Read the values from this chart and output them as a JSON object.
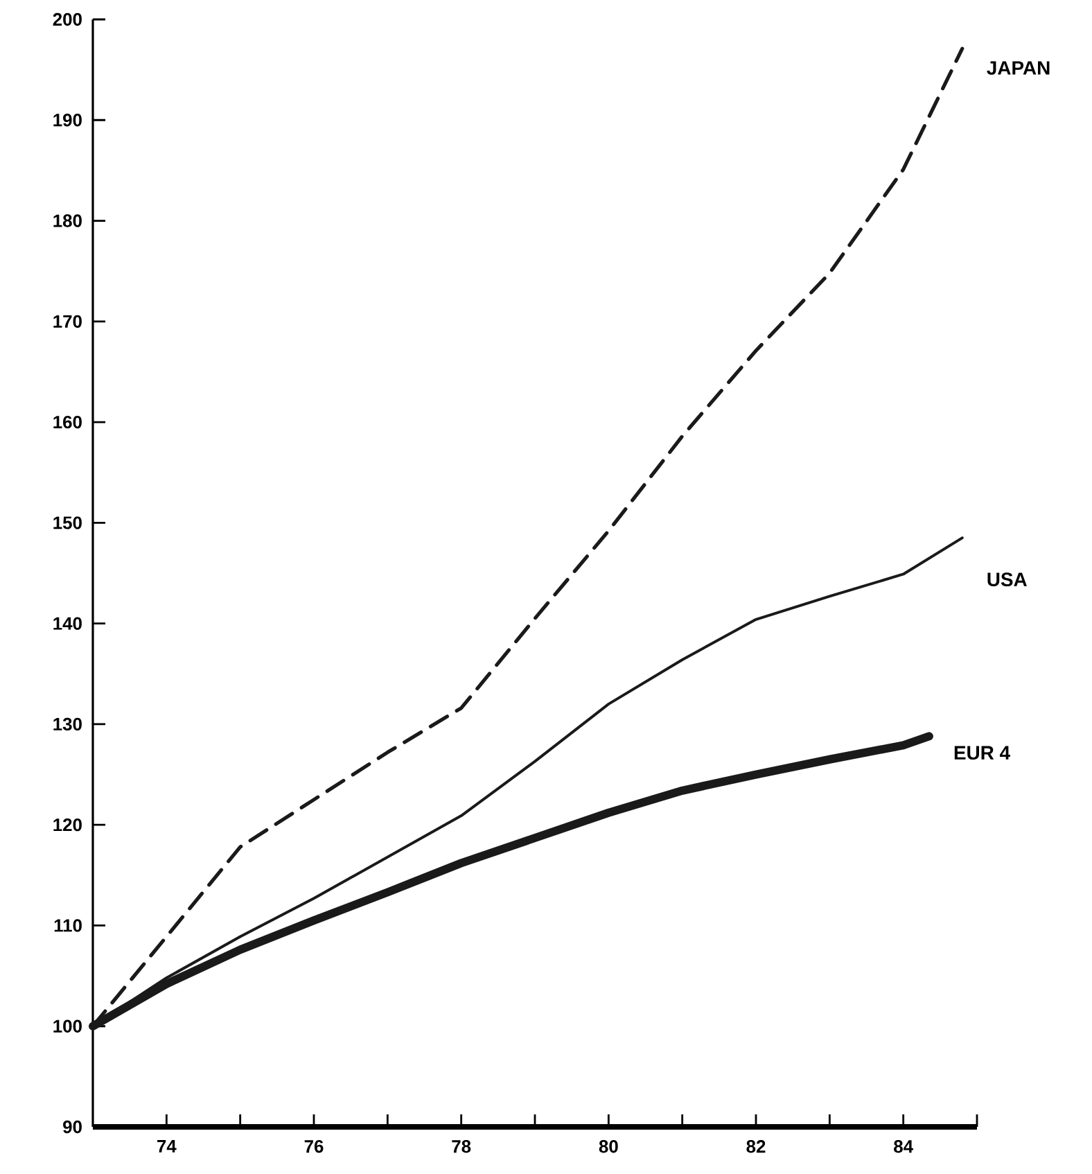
{
  "chart_data": {
    "type": "line",
    "xlim": [
      73,
      85
    ],
    "ylim": [
      90,
      200
    ],
    "xticks": [
      {
        "value": 74,
        "label": "74"
      },
      {
        "value": 75,
        "label": null
      },
      {
        "value": 76,
        "label": "76"
      },
      {
        "value": 77,
        "label": null
      },
      {
        "value": 78,
        "label": "78"
      },
      {
        "value": 79,
        "label": null
      },
      {
        "value": 80,
        "label": "80"
      },
      {
        "value": 81,
        "label": null
      },
      {
        "value": 82,
        "label": "82"
      },
      {
        "value": 83,
        "label": null
      },
      {
        "value": 84,
        "label": "84"
      },
      {
        "value": 85,
        "label": null
      }
    ],
    "yticks": [
      90,
      100,
      110,
      120,
      130,
      140,
      150,
      160,
      170,
      180,
      190,
      200
    ],
    "grid": false,
    "legend": false,
    "marker": "none",
    "series": [
      {
        "name": "JAPAN",
        "color": "#1a1a1a",
        "line_style": "dashed",
        "x": [
          73,
          74,
          75,
          76,
          77,
          78,
          79,
          80,
          81,
          82,
          83,
          84,
          84.8
        ],
        "values": [
          100,
          108.9,
          117.8,
          122.5,
          127.2,
          131.6,
          140.5,
          149.2,
          158.6,
          167.1,
          174.8,
          185.1,
          197.1
        ]
      },
      {
        "name": "USA",
        "color": "#1a1a1a",
        "line_style": "solid",
        "x": [
          73,
          74,
          75,
          76,
          77,
          78,
          79,
          80,
          81,
          82,
          83,
          84,
          84.8
        ],
        "values": [
          100,
          104.8,
          108.9,
          112.7,
          116.8,
          120.9,
          126.3,
          132,
          136.4,
          140.4,
          142.7,
          144.9,
          148.5
        ]
      },
      {
        "name": "EUR 4",
        "color": "#1a1a1a",
        "line_style": "solid",
        "x": [
          73,
          74,
          75,
          76,
          77,
          78,
          79,
          80,
          81,
          82,
          83,
          84,
          84.35
        ],
        "values": [
          100,
          104.2,
          107.6,
          110.5,
          113.3,
          116.2,
          118.7,
          121.2,
          123.4,
          125,
          126.5,
          127.9,
          128.8
        ]
      }
    ]
  }
}
